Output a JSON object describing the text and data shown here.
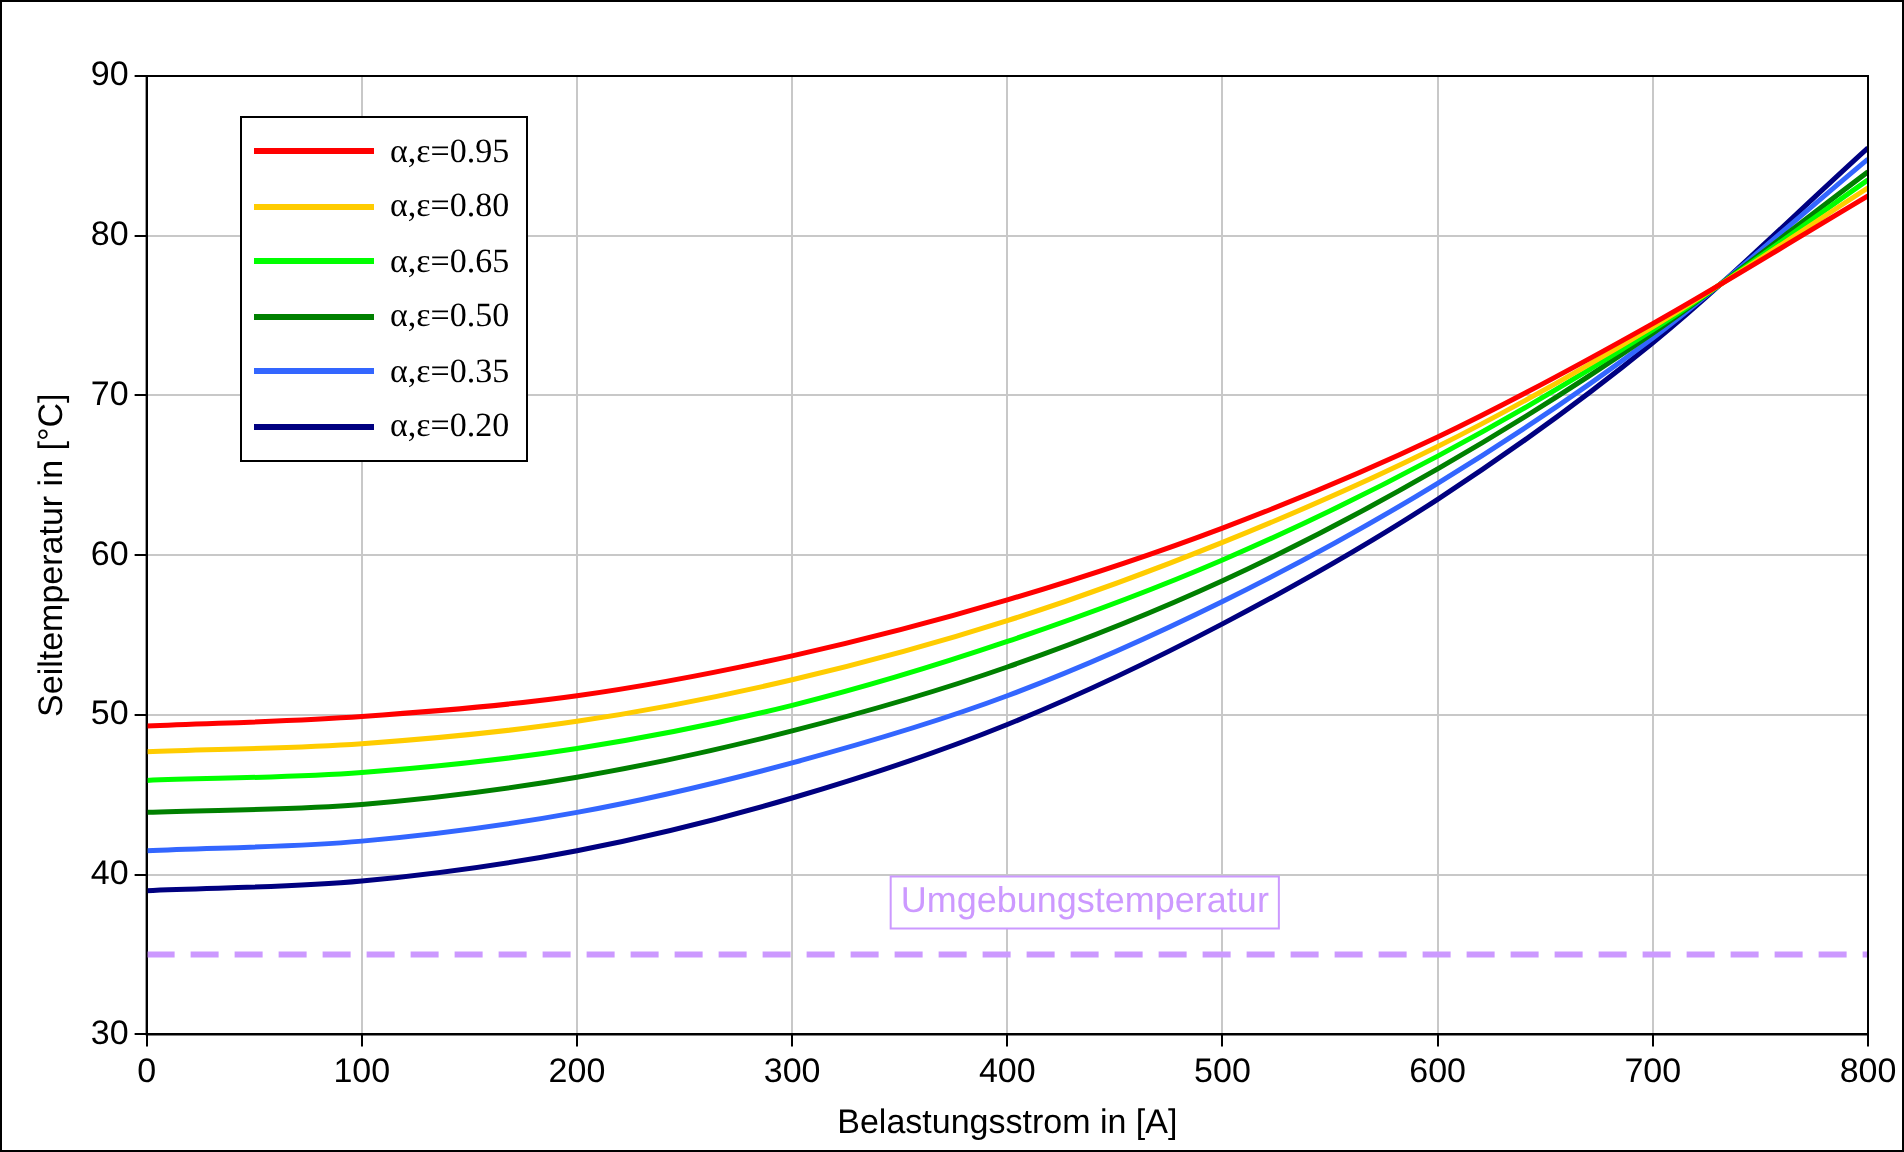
{
  "chart_data": {
    "type": "line",
    "xlabel": "Belastungsstrom in [A]",
    "ylabel": "Seiltemperatur in [°C]",
    "x": [
      0,
      100,
      200,
      300,
      400,
      500,
      600,
      700,
      800
    ],
    "xlim": [
      0,
      800
    ],
    "xticks": [
      0,
      100,
      200,
      300,
      400,
      500,
      600,
      700,
      800
    ],
    "ylim": [
      30,
      90
    ],
    "yticks": [
      30,
      40,
      50,
      60,
      70,
      80,
      90
    ],
    "grid": true,
    "legend": "top left",
    "marker": "none",
    "line_style": "solid",
    "series": [
      {
        "name": "α,ε=0.95",
        "color": "#ff0000",
        "values": [
          49.3,
          49.9,
          51.2,
          53.7,
          57.2,
          61.7,
          67.4,
          74.5,
          82.5
        ]
      },
      {
        "name": "α,ε=0.80",
        "color": "#ffcc00",
        "values": [
          47.7,
          48.2,
          49.6,
          52.2,
          55.9,
          60.8,
          66.8,
          74.3,
          83.0
        ]
      },
      {
        "name": "α,ε=0.65",
        "color": "#00ff00",
        "values": [
          45.9,
          46.4,
          47.9,
          50.6,
          54.6,
          59.7,
          66.2,
          74.1,
          83.5
        ]
      },
      {
        "name": "α,ε=0.50",
        "color": "#008000",
        "values": [
          43.9,
          44.4,
          46.1,
          49.0,
          53.0,
          58.4,
          65.4,
          73.9,
          84.0
        ]
      },
      {
        "name": "α,ε=0.35",
        "color": "#3366ff",
        "values": [
          41.5,
          42.1,
          43.9,
          47.0,
          51.2,
          57.1,
          64.5,
          73.6,
          84.8
        ]
      },
      {
        "name": "α,ε=0.20",
        "color": "#000080",
        "values": [
          39.0,
          39.6,
          41.5,
          44.8,
          49.4,
          55.7,
          63.5,
          73.3,
          85.5
        ]
      }
    ],
    "ref_lines": [
      {
        "axis": "y",
        "value": 35,
        "label": "Umgebungstemperatur",
        "color": "#cc99ff",
        "line_style": "dashed"
      }
    ]
  }
}
